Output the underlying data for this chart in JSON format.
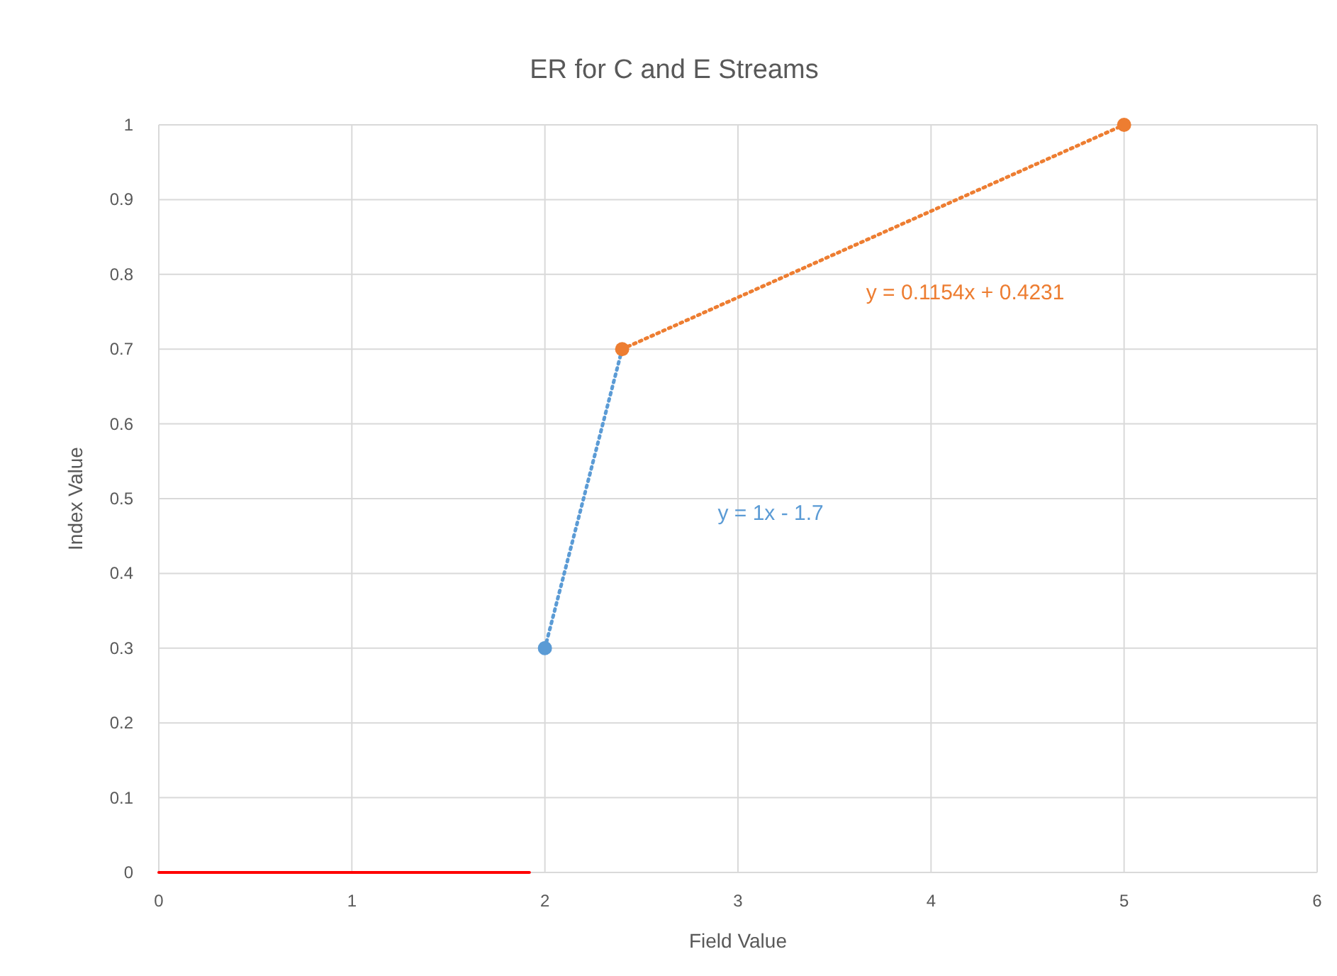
{
  "chart_data": {
    "type": "scatter",
    "title": "ER for C and E Streams",
    "xlabel": "Field Value",
    "ylabel": "Index Value",
    "xlim": [
      0,
      6
    ],
    "xticks": [
      0,
      1,
      2,
      3,
      4,
      5,
      6
    ],
    "ylim": [
      0,
      1
    ],
    "yticks": [
      0,
      0.1,
      0.2,
      0.3,
      0.4,
      0.5,
      0.6,
      0.7,
      0.8,
      0.9,
      1
    ],
    "grid": true,
    "marker": "circle",
    "series": [
      {
        "type": "line",
        "x": [
          0,
          1.92
        ],
        "values": [
          0,
          0
        ],
        "color": "#ff0000",
        "marker": "none",
        "line_style": "solid"
      },
      {
        "type": "line",
        "x": [
          2,
          2.4
        ],
        "values": [
          0.3,
          0.7
        ],
        "color": "#5b9bd5",
        "marker": "none",
        "line_style": "dotted"
      },
      {
        "type": "line",
        "x": [
          2.4,
          5
        ],
        "values": [
          0.7,
          1
        ],
        "color": "#ed7d31",
        "marker": "none",
        "line_style": "dotted"
      },
      {
        "x": [
          2
        ],
        "values": [
          0.3
        ],
        "color": "#5b9bd5"
      },
      {
        "x": [
          2.4,
          5
        ],
        "values": [
          0.7,
          1
        ],
        "color": "#ed7d31"
      }
    ],
    "annotations": [
      "y = 1x - 1.7",
      "y = 0.1154x + 0.4231"
    ]
  }
}
